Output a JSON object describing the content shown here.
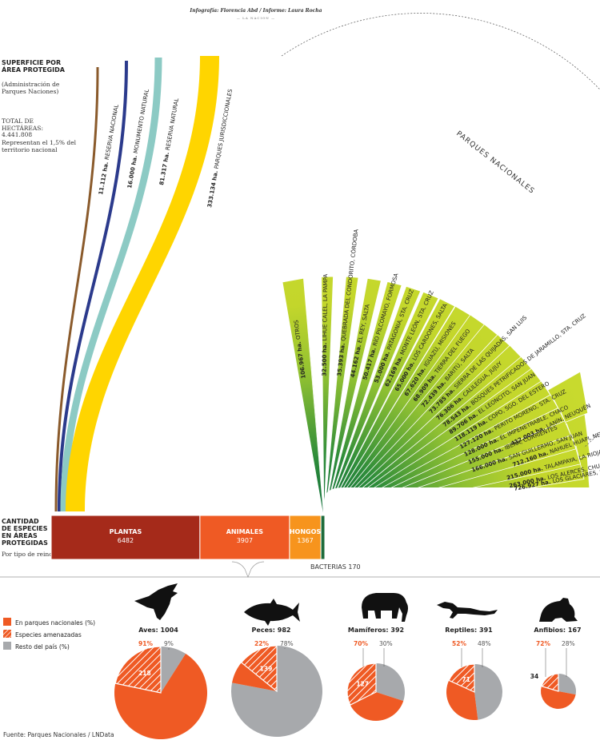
{
  "header": {
    "credits": "Infografía: Florencia Abd / Informe: Laura Rocha",
    "publisher": "— LA NACION —"
  },
  "area_section": {
    "title": "SUPERFICIE POR ÁREA PROTEGIDA",
    "subtitle": "(Administración de Parques Naciones)",
    "total_label": "TOTAL DE HECTÁREAS:",
    "total_value": "4.441.808",
    "total_note": "Representan el 1,5% del territorio nacional",
    "group_label": "PARQUES NACIONALES"
  },
  "species_section": {
    "title": "CANTIDAD DE ESPECIES EN ÁREAS PROTEGIDAS",
    "subtitle": "Por tipo de reino",
    "bacteria_label": "BACTERIAS 170"
  },
  "legend": {
    "parks": "En parques nacionales (%)",
    "threatened": "Especies amenazadas",
    "rest": "Resto del país (%)"
  },
  "source": "Fuente: Parques Nacionales / LNData",
  "colors": {
    "green": "#c3d62b",
    "dark_green": "#1d7d3b",
    "yellow": "#ffd500",
    "teal": "#8ccac4",
    "navy": "#2b3a8c",
    "brown": "#8a5a2b",
    "plants": "#a52a1a",
    "animals": "#ef5a24",
    "fungi": "#f7941d",
    "bacteria": "#1d6b3a",
    "gray": "#a7a9ac"
  },
  "chart_data": [
    {
      "type": "bar",
      "title": "SUPERFICIE POR ÁREA PROTEGIDA",
      "unit": "ha.",
      "categories": [
        {
          "label": "RESERVA NACIONAL",
          "value": 11112,
          "value_text": "11.112 ha.",
          "kind": "curve",
          "color": "#8a5a2b"
        },
        {
          "label": "MONUMENTO NATURAL",
          "value": 16000,
          "value_text": "16.000 ha.",
          "kind": "curve",
          "color": "#2b3a8c"
        },
        {
          "label": "RESERVA NATURAL",
          "value": 81317,
          "value_text": "81.317 ha.",
          "kind": "curve",
          "color": "#8ccac4"
        },
        {
          "label": "PARQUES JURISDICCIONALES",
          "value": 333134,
          "value_text": "333.134 ha.",
          "kind": "curve",
          "color": "#ffd500"
        }
      ],
      "parks": [
        {
          "label": "OTROS",
          "value": 106967,
          "value_text": "106.967 ha."
        },
        {
          "label": "LIHUE CALEL, LA PAMPA",
          "value": 32500,
          "value_text": "32.500 ha."
        },
        {
          "label": "QUEBRADA DEL CONDORITO, CÓRDOBA",
          "value": 35393,
          "value_text": "35.393 ha."
        },
        {
          "label": "EL REY, SALTA",
          "value": 44162,
          "value_text": "44.162 ha."
        },
        {
          "label": "RÍO PILCOMAYO, FORMOSA",
          "value": 50417,
          "value_text": "50.417 ha."
        },
        {
          "label": "PATAGONIA, STA. CRUZ",
          "value": 53000,
          "value_text": "53.000 ha."
        },
        {
          "label": "MONTE LEÓN, STA. CRUZ",
          "value": 62169,
          "value_text": "62.169 ha."
        },
        {
          "label": "LOS CARDONES, SALTA",
          "value": 65000,
          "value_text": "65.000 ha."
        },
        {
          "label": "IGUAZÚ, MISIONES",
          "value": 67620,
          "value_text": "67.620 ha."
        },
        {
          "label": "TIERRA DEL FUEGO",
          "value": 68909,
          "value_text": "68.909 ha."
        },
        {
          "label": "BARITÚ, SALTA",
          "value": 72439,
          "value_text": "72.439 ha."
        },
        {
          "label": "SIERRA DE LAS QUIJADAS, SAN LUIS",
          "value": 73785,
          "value_text": "73.785 ha."
        },
        {
          "label": "CALILEGUA, JUJUY",
          "value": 76306,
          "value_text": "76.306 ha."
        },
        {
          "label": "BOSQUES PETRIFICADOS DE JARAMILLO, STA. CRUZ",
          "value": 78543,
          "value_text": "78.543 ha."
        },
        {
          "label": "EL LEONCITO, SAN JUAN",
          "value": 89706,
          "value_text": "89.706 ha."
        },
        {
          "label": "COPO, SGO. DEL ESTERO",
          "value": 118119,
          "value_text": "118.119 ha."
        },
        {
          "label": "PERITO MORENO, STA. CRUZ",
          "value": 127120,
          "value_text": "127.120 ha."
        },
        {
          "label": "EL IMPENETRABLE, CHACO",
          "value": 128000,
          "value_text": "128.000 ha."
        },
        {
          "label": "IBERÁ, CORRIENTES",
          "value": 155000,
          "value_text": "155.000 ha."
        },
        {
          "label": "SAN GUILLERMO, SAN JUAN",
          "value": 166000,
          "value_text": "166.000 ha."
        },
        {
          "label": "TALAMPAYA, LA RIOJA",
          "value": 215000,
          "value_text": "215.000 ha."
        },
        {
          "label": "LOS ALERCES, CHUBUT",
          "value": 263000,
          "value_text": "263.000 ha."
        },
        {
          "label": "LANÍN, NEUQUÉN",
          "value": 412003,
          "value_text": "412.003 ha."
        },
        {
          "label": "NAHUEL HUAPI, NEUQUÉN/ R. NEGRO",
          "value": 712160,
          "value_text": "712.160 ha."
        },
        {
          "label": "LOS GLACIARES, STA. CRUZ",
          "value": 726927,
          "value_text": "726.927 ha."
        }
      ]
    },
    {
      "type": "bar",
      "title": "CANTIDAD DE ESPECIES EN ÁREAS PROTEGIDAS",
      "subtitle": "Por tipo de reino",
      "categories": [
        "PLANTAS",
        "ANIMALES",
        "HONGOS",
        "BACTERIAS"
      ],
      "values": [
        6482,
        3907,
        1367,
        170
      ],
      "colors": [
        "#a52a1a",
        "#ef5a24",
        "#f7941d",
        "#1d6b3a"
      ]
    },
    {
      "type": "pie",
      "groups": [
        {
          "name": "Aves",
          "icon": "bird-icon",
          "label": "Aves: 1004",
          "total": 1004,
          "parks_pct": 91,
          "rest_pct": 9,
          "threatened": 218
        },
        {
          "name": "Peces",
          "icon": "fish-icon",
          "label": "Peces: 982",
          "total": 982,
          "parks_pct": 22,
          "rest_pct": 78,
          "threatened": 139
        },
        {
          "name": "Mamíferos",
          "icon": "elephant-icon",
          "label": "Mamíferos: 392",
          "total": 392,
          "parks_pct": 70,
          "rest_pct": 30,
          "threatened": 127
        },
        {
          "name": "Reptiles",
          "icon": "lizard-icon",
          "label": "Reptiles: 391",
          "total": 391,
          "parks_pct": 52,
          "rest_pct": 48,
          "threatened": 71
        },
        {
          "name": "Anfibios",
          "icon": "frog-icon",
          "label": "Anfibios: 167",
          "total": 167,
          "parks_pct": 72,
          "rest_pct": 28,
          "threatened": 34
        }
      ]
    }
  ]
}
